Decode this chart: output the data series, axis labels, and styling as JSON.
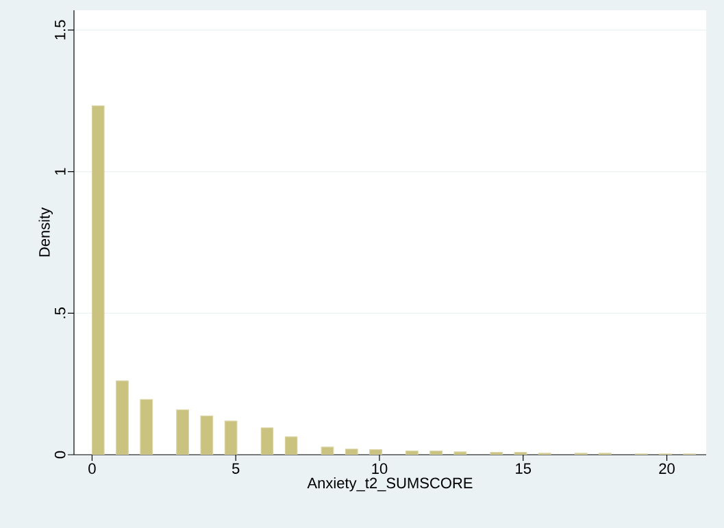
{
  "chart_data": {
    "type": "histogram",
    "xlabel": "Anxiety_t2_SUMSCORE",
    "ylabel": "Density",
    "bins": [
      0,
      0.42,
      0.84,
      1.26,
      1.68,
      2.1,
      2.52,
      2.94,
      3.36,
      3.78,
      4.2,
      4.62,
      5.04,
      5.46,
      5.88,
      6.3,
      6.72,
      7.14,
      7.56,
      7.98,
      8.4,
      8.82,
      9.24,
      9.66,
      10.08,
      10.5,
      10.92,
      11.34,
      11.76,
      12.18,
      12.6,
      13.02,
      13.44,
      13.86,
      14.28,
      14.7,
      15.12,
      15.54,
      15.96,
      16.38,
      16.8,
      17.22,
      17.64,
      18.06,
      18.48,
      18.9,
      19.32,
      19.74,
      20.16,
      20.58,
      21
    ],
    "values": [
      1.232,
      0,
      0.261,
      0,
      0.195,
      0,
      0,
      0.159,
      0,
      0.137,
      0,
      0.119,
      0,
      0,
      0.095,
      0,
      0.063,
      0,
      0,
      0.027,
      0,
      0.02,
      0,
      0.018,
      0,
      0,
      0.013,
      0,
      0.013,
      0,
      0.01,
      0,
      0,
      0.008,
      0,
      0.008,
      0,
      0.005,
      0,
      0,
      0.005,
      0,
      0.005,
      0,
      0,
      0.003,
      0,
      0.003,
      0,
      0.003
    ],
    "color": "#cac27f",
    "xlim": [
      -0.63,
      21.37
    ],
    "ylim": [
      0,
      1.57
    ],
    "xticks": [
      0,
      5,
      10,
      15,
      20
    ],
    "yticks": [
      0,
      {
        "value": 0.5,
        "label": ".5"
      },
      1,
      1.5
    ],
    "grid": "y"
  }
}
